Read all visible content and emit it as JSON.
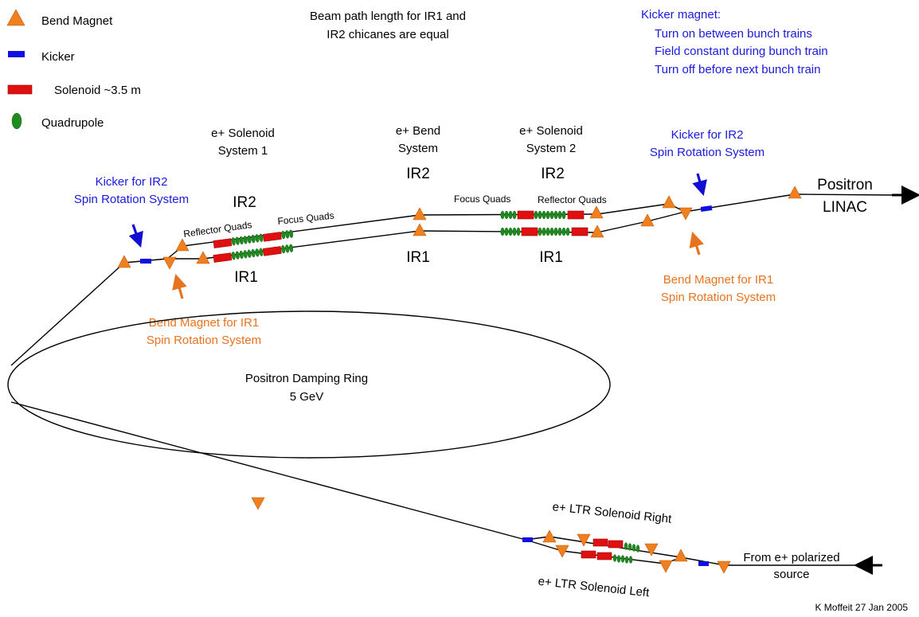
{
  "legend": {
    "bend": "Bend Magnet",
    "kicker": "Kicker",
    "solenoid": "Solenoid ~3.5 m",
    "quadrupole": "Quadrupole"
  },
  "note_top": [
    "Beam path length for IR1 and",
    "IR2 chicanes are equal"
  ],
  "kicker_note": {
    "title": "Kicker magnet:",
    "lines": [
      "Turn on between bunch trains",
      "Field constant during bunch train",
      "Turn off before next bunch train"
    ]
  },
  "systems": {
    "sol1": [
      "e+ Solenoid",
      "System 1"
    ],
    "bend": [
      "e+ Bend",
      "System"
    ],
    "sol2": [
      "e+ Solenoid",
      "System 2"
    ]
  },
  "ir": {
    "ir1": "IR1",
    "ir2": "IR2"
  },
  "labels": {
    "reflector_quads": "Reflector Quads",
    "focus_quads": "Focus Quads",
    "kicker_ir2": [
      "Kicker for IR2",
      "Spin Rotation System"
    ],
    "bend_ir1": [
      "Bend Magnet for IR1",
      "Spin Rotation System"
    ],
    "linac": [
      "Positron",
      "LINAC"
    ],
    "ring": [
      "Positron Damping Ring",
      "5 GeV"
    ],
    "ltr_right": "e+ LTR Solenoid Right",
    "ltr_left": "e+ LTR Solenoid Left",
    "source": [
      "From e+ polarized",
      "source"
    ],
    "credit": "K Moffeit 27 Jan 2005"
  },
  "colors": {
    "bend": "#f0801e",
    "kicker": "#1010e0",
    "solenoid": "#e01010",
    "quadrupole": "#1f8a1f",
    "blue_text": "#1a1adc",
    "orange_text": "#e8731e"
  }
}
